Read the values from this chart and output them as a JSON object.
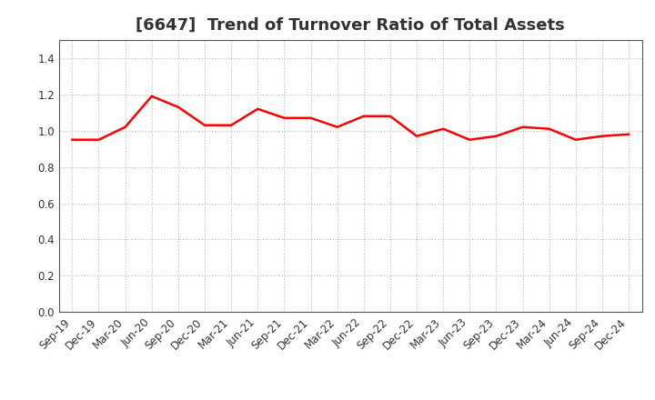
{
  "title": "[6647]  Trend of Turnover Ratio of Total Assets",
  "x_labels": [
    "Sep-19",
    "Dec-19",
    "Mar-20",
    "Jun-20",
    "Sep-20",
    "Dec-20",
    "Mar-21",
    "Jun-21",
    "Sep-21",
    "Dec-21",
    "Mar-22",
    "Jun-22",
    "Sep-22",
    "Dec-22",
    "Mar-23",
    "Jun-23",
    "Sep-23",
    "Dec-23",
    "Mar-24",
    "Jun-24",
    "Sep-24",
    "Dec-24"
  ],
  "y_values": [
    0.95,
    0.95,
    1.02,
    1.19,
    1.13,
    1.03,
    1.03,
    1.12,
    1.07,
    1.07,
    1.02,
    1.08,
    1.08,
    0.97,
    1.01,
    0.95,
    0.97,
    1.02,
    1.01,
    0.95,
    0.97,
    0.98
  ],
  "line_color": "#FF0000",
  "line_width": 1.8,
  "ylim": [
    0.0,
    1.5
  ],
  "yticks": [
    0.0,
    0.2,
    0.4,
    0.6,
    0.8,
    1.0,
    1.2,
    1.4
  ],
  "grid_color": "#bbbbbb",
  "background_color": "#ffffff",
  "title_fontsize": 13,
  "tick_fontsize": 8.5,
  "title_color": "#333333"
}
